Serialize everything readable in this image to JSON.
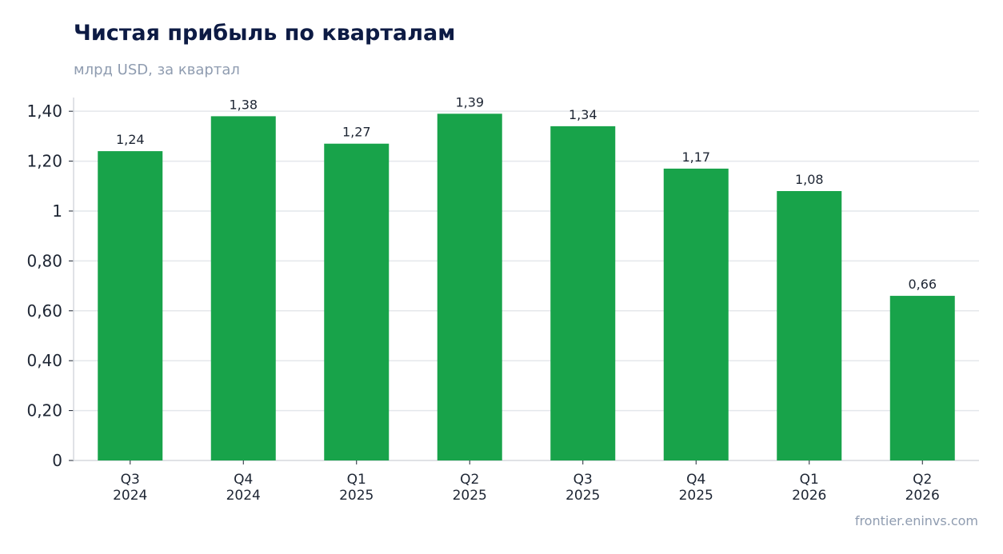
{
  "title": "Чистая прибыль по кварталам",
  "subtitle": "млрд USD, за квартал",
  "source": "frontier.eninvs.com",
  "colors": {
    "bar": "#18a34a",
    "title": "#0d1b44",
    "muted": "#8f9cb0",
    "grid": "#e4e7eb",
    "axis": "#d5d9de",
    "tick_text": "#1d2533"
  },
  "chart_data": {
    "type": "bar",
    "title": "Чистая прибыль по кварталам",
    "subtitle": "млрд USD, за квартал",
    "categories": [
      [
        "Q3",
        "2024"
      ],
      [
        "Q4",
        "2024"
      ],
      [
        "Q1",
        "2025"
      ],
      [
        "Q2",
        "2025"
      ],
      [
        "Q3",
        "2025"
      ],
      [
        "Q4",
        "2025"
      ],
      [
        "Q1",
        "2026"
      ],
      [
        "Q2",
        "2026"
      ]
    ],
    "values": [
      1.24,
      1.38,
      1.27,
      1.39,
      1.34,
      1.17,
      1.08,
      0.66
    ],
    "value_labels": [
      "1,24",
      "1,38",
      "1,27",
      "1,39",
      "1,34",
      "1,17",
      "1,08",
      "0,66"
    ],
    "yticks": [
      0,
      0.2,
      0.4,
      0.6,
      0.8,
      1,
      1.2,
      1.4
    ],
    "ytick_labels": [
      "0",
      "0,20",
      "0,40",
      "0,60",
      "0,80",
      "1",
      "1,20",
      "1,40"
    ],
    "ylim": [
      0,
      1.455
    ],
    "grid": true,
    "xlabel": "",
    "ylabel": ""
  }
}
